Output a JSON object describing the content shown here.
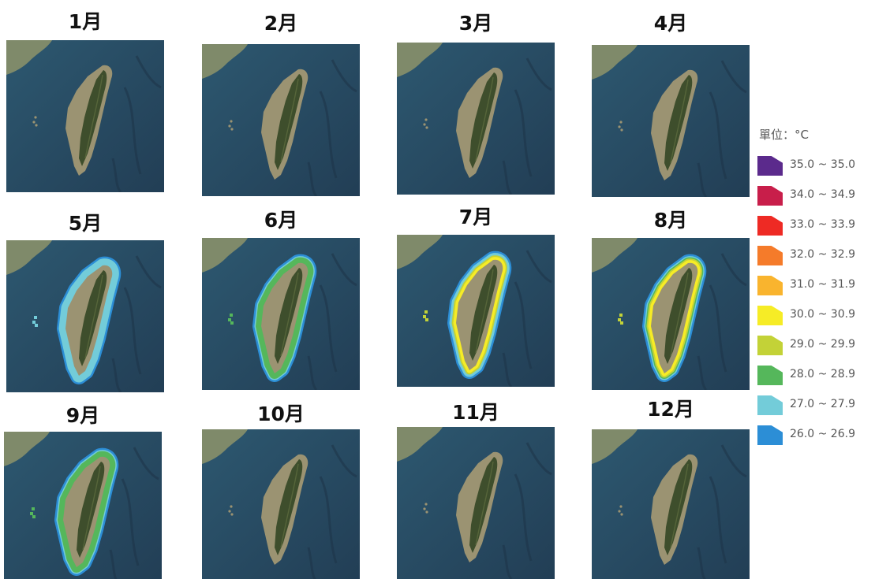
{
  "months": [
    {
      "label": "1月",
      "temp_bands": []
    },
    {
      "label": "2月",
      "temp_bands": []
    },
    {
      "label": "3月",
      "temp_bands": []
    },
    {
      "label": "4月",
      "temp_bands": []
    },
    {
      "label": "5月",
      "temp_bands": [
        "26.0 ~ 26.9",
        "27.0 ~ 27.9"
      ]
    },
    {
      "label": "6月",
      "temp_bands": [
        "26.0 ~ 26.9",
        "27.0 ~ 27.9",
        "28.0 ~ 28.9"
      ]
    },
    {
      "label": "7月",
      "temp_bands": [
        "26.0 ~ 26.9",
        "27.0 ~ 27.9",
        "29.0 ~ 29.9",
        "30.0 ~ 30.9"
      ]
    },
    {
      "label": "8月",
      "temp_bands": [
        "26.0 ~ 26.9",
        "27.0 ~ 27.9",
        "28.0 ~ 28.9",
        "29.0 ~ 29.9",
        "30.0 ~ 30.9"
      ]
    },
    {
      "label": "9月",
      "temp_bands": [
        "26.0 ~ 26.9",
        "27.0 ~ 27.9",
        "28.0 ~ 28.9"
      ]
    },
    {
      "label": "10月",
      "temp_bands": []
    },
    {
      "label": "11月",
      "temp_bands": []
    },
    {
      "label": "12月",
      "temp_bands": []
    }
  ],
  "legend": {
    "title": "單位：°C",
    "items": [
      {
        "label": "35.0 ~ 35.0",
        "color": "#5b2a8c"
      },
      {
        "label": "34.0 ~ 34.9",
        "color": "#c81e4a"
      },
      {
        "label": "33.0 ~ 33.9",
        "color": "#ee2a24"
      },
      {
        "label": "32.0 ~ 32.9",
        "color": "#f57b2a"
      },
      {
        "label": "31.0 ~ 31.9",
        "color": "#f9b42e"
      },
      {
        "label": "30.0 ~ 30.9",
        "color": "#f6ec26"
      },
      {
        "label": "29.0 ~ 29.9",
        "color": "#c3d237"
      },
      {
        "label": "28.0 ~ 28.9",
        "color": "#55b75b"
      },
      {
        "label": "27.0 ~ 27.9",
        "color": "#73ccd9"
      },
      {
        "label": "26.0 ~ 26.9",
        "color": "#2c8ed6"
      }
    ]
  },
  "colors": {
    "ocean": "#2d5870",
    "deep_ocean": "#223e55",
    "land": "#3e4e2c",
    "coast": "#9b9372",
    "mainland": "#7f8a6a"
  }
}
